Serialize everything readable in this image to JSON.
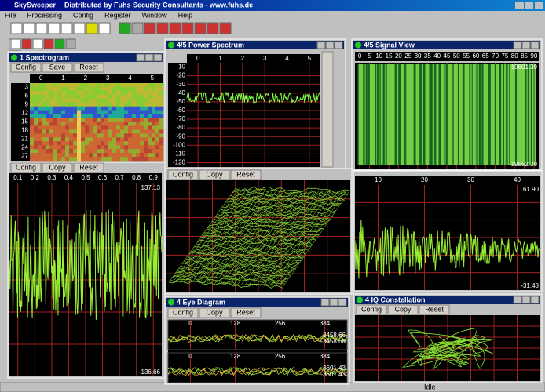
{
  "window": {
    "title": "SkySweeper",
    "subtitle": "Distributed by Fuhs Security Consultants - www.fuhs.de"
  },
  "menu": [
    "File",
    "Processing",
    "Config",
    "Register",
    "Window",
    "Help"
  ],
  "panels": [
    {
      "title": "1 Spectrogram",
      "buttons": [
        "Config",
        "Save",
        "Reset"
      ],
      "x_labels": [
        "0",
        "1",
        "2",
        "3",
        "4",
        "5"
      ],
      "y_labels": [
        "3",
        "6",
        "9",
        "12",
        "15",
        "18",
        "21",
        "24",
        "27"
      ]
    },
    {
      "title": "4/5 Power Spectrum",
      "x_labels": [
        "0",
        "1",
        "2",
        "3",
        "4",
        "5"
      ],
      "y_labels": [
        "-10",
        "-20",
        "-30",
        "-40",
        "-50",
        "-60",
        "-70",
        "-80",
        "-90",
        "-100",
        "-110",
        "-120"
      ]
    },
    {
      "title": "4/5 Signal View",
      "x_labels": [
        "0",
        "5",
        "10",
        "15",
        "20",
        "25",
        "30",
        "35",
        "40",
        "45",
        "50",
        "55",
        "60",
        "65",
        "70",
        "75",
        "80",
        "85",
        "90"
      ],
      "scale_labels": [
        "19601.30",
        "-19552.20"
      ]
    },
    {
      "buttons": [
        "Config",
        "Copy",
        "Reset"
      ],
      "x_labels": [
        "0.1",
        "0.2",
        "0.3",
        "0.4",
        "0.5",
        "0.6",
        "0.7",
        "0.8",
        "0.9"
      ],
      "scale_labels": [
        "137.13",
        "-136.66"
      ]
    },
    {
      "buttons": [
        "Config",
        "Copy",
        "Reset"
      ]
    },
    {
      "x_labels": [
        "10",
        "20",
        "30",
        "40"
      ],
      "scale_labels": [
        "61.90",
        "-31.48"
      ]
    },
    {
      "title": "4 Eye Diagram",
      "buttons": [
        "Config",
        "Copy",
        "Reset"
      ],
      "x_labels": [
        "0",
        "128",
        "256",
        "384"
      ],
      "scale_labels": [
        "3458.66",
        "-3458.66",
        "3601.43",
        "-3601.43"
      ]
    },
    {
      "title": "4 IQ Constellation",
      "buttons": [
        "Config",
        "Copy",
        "Reset"
      ]
    }
  ],
  "status": "Idle"
}
